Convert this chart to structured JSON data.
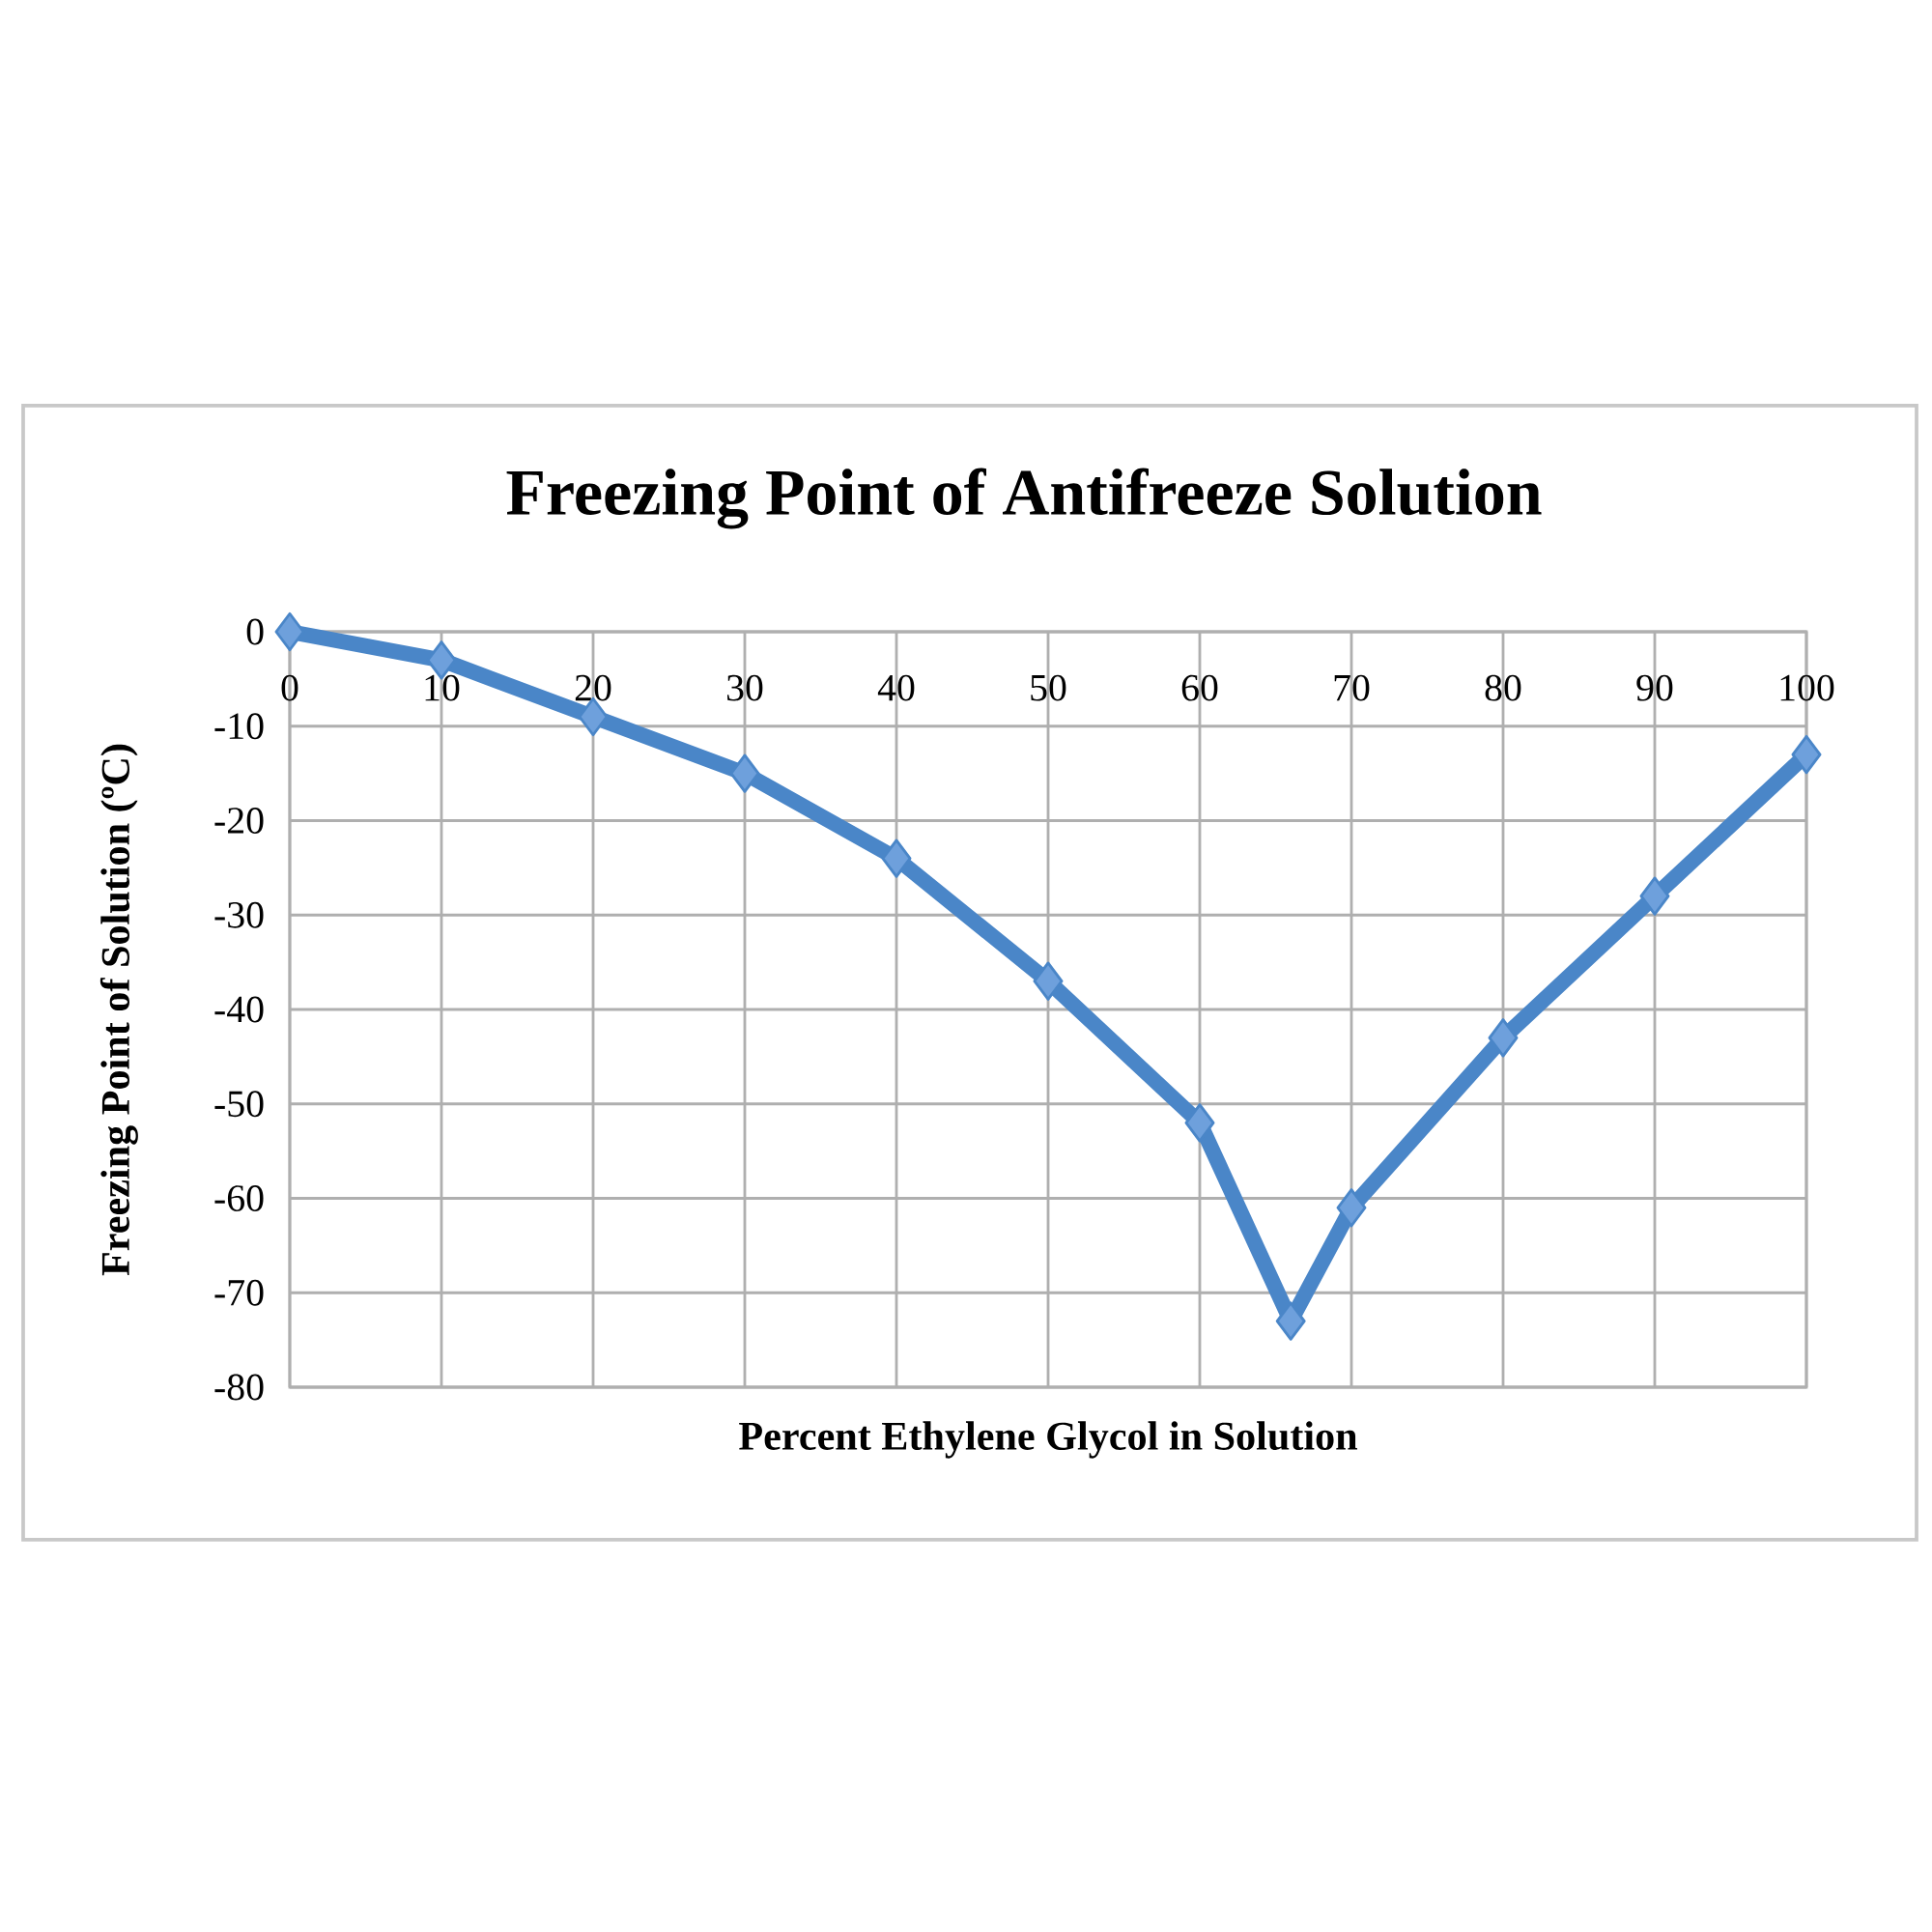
{
  "chart_data": {
    "type": "line",
    "title": "Freezing Point of  Antifreeze Solution",
    "xlabel": "Percent Ethylene Glycol in Solution",
    "ylabel": "Freezing Point of Solution (ºC)",
    "x": [
      0,
      10,
      20,
      30,
      40,
      50,
      60,
      66,
      70,
      80,
      90,
      100
    ],
    "series": [
      {
        "color": "#4a86c8",
        "values": [
          0,
          -3,
          -9,
          -15,
          -24,
          -37,
          -52,
          -73,
          -61,
          -43,
          -28,
          -13
        ]
      }
    ],
    "xlim": [
      0,
      100
    ],
    "ylim": [
      -80,
      0
    ],
    "xticks": [
      0,
      10,
      20,
      30,
      40,
      50,
      60,
      70,
      80,
      90,
      100
    ],
    "yticks": [
      -80,
      -70,
      -60,
      -50,
      -40,
      -30,
      -20,
      -10,
      0
    ],
    "grid": true,
    "marker": "diamond",
    "line_style": "solid"
  }
}
